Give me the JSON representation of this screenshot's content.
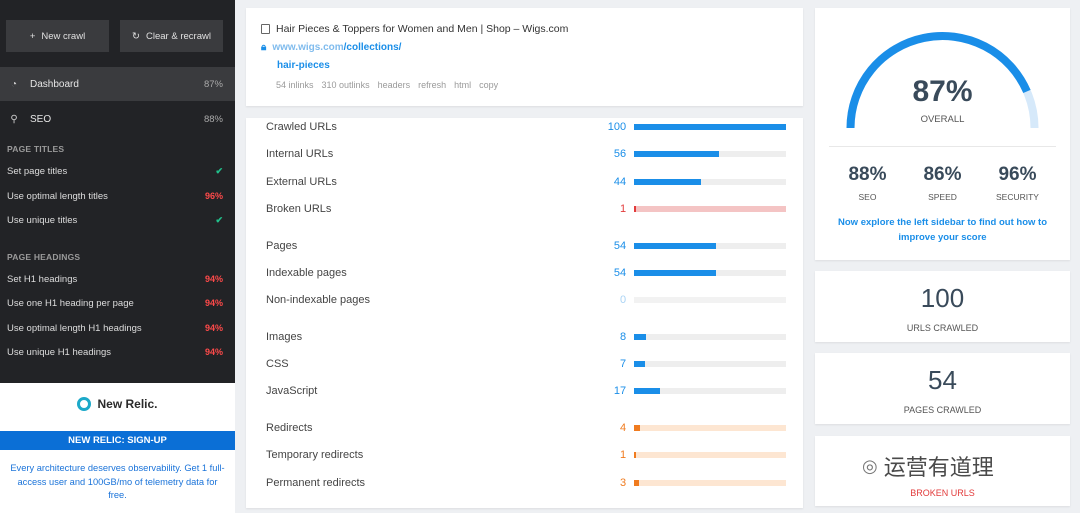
{
  "toolbar": {
    "new_crawl": "New crawl",
    "new_crawl_icon": "plus-icon",
    "recrawl": "Clear & recrawl",
    "recrawl_icon": "refresh-icon"
  },
  "sidebar": {
    "nav": [
      {
        "label": "Dashboard",
        "pct": "87%",
        "icon": "gauge-icon"
      },
      {
        "label": "SEO",
        "pct": "88%",
        "icon": "search-icon"
      }
    ],
    "sections": [
      {
        "title": "PAGE TITLES",
        "items": [
          {
            "label": "Set page titles",
            "status": "✔",
            "ok": true
          },
          {
            "label": "Use optimal length titles",
            "status": "96%",
            "ok": false
          },
          {
            "label": "Use unique titles",
            "status": "✔",
            "ok": true
          }
        ]
      },
      {
        "title": "PAGE HEADINGS",
        "items": [
          {
            "label": "Set H1 headings",
            "status": "94%",
            "ok": false
          },
          {
            "label": "Use one H1 heading per page",
            "status": "94%",
            "ok": false
          },
          {
            "label": "Use optimal length H1 headings",
            "status": "94%",
            "ok": false
          },
          {
            "label": "Use unique H1 headings",
            "status": "94%",
            "ok": false
          }
        ]
      }
    ],
    "promo": {
      "logo_text": "New Relic.",
      "bar": "NEW RELIC: SIGN-UP",
      "text": "Every architecture deserves observability. Get 1 full-access user and 100GB/mo of telemetry data for free."
    }
  },
  "url_card": {
    "title": "Hair Pieces & Toppers for Women and Men | Shop – Wigs.com",
    "domain": "www.wigs.com",
    "path1": "/collections/",
    "path2": "hair-pieces",
    "links": [
      "54 inlinks",
      "310 outlinks",
      "headers",
      "refresh",
      "html",
      "copy"
    ]
  },
  "stats": {
    "max": 100,
    "groups": [
      [
        {
          "label": "Crawled URLs",
          "value": 100,
          "color": "#1a8ee8",
          "track": "#eeeeee"
        },
        {
          "label": "Internal URLs",
          "value": 56,
          "color": "#1a8ee8",
          "track": "#eeeeee"
        },
        {
          "label": "External URLs",
          "value": 44,
          "color": "#1a8ee8",
          "track": "#eeeeee"
        },
        {
          "label": "Broken URLs",
          "value": 1,
          "color": "#e23b3b",
          "track": "#f4c4c4"
        }
      ],
      [
        {
          "label": "Pages",
          "value": 54,
          "color": "#1a8ee8",
          "track": "#eeeeee"
        },
        {
          "label": "Indexable pages",
          "value": 54,
          "color": "#1a8ee8",
          "track": "#eeeeee"
        },
        {
          "label": "Non-indexable pages",
          "value": 0,
          "color": "#a9d3f5",
          "track": "#f2f2f2"
        }
      ],
      [
        {
          "label": "Images",
          "value": 8,
          "color": "#1a8ee8",
          "track": "#eeeeee"
        },
        {
          "label": "CSS",
          "value": 7,
          "color": "#1a8ee8",
          "track": "#eeeeee"
        },
        {
          "label": "JavaScript",
          "value": 17,
          "color": "#1a8ee8",
          "track": "#eeeeee"
        }
      ],
      [
        {
          "label": "Redirects",
          "value": 4,
          "color": "#f07b1f",
          "track": "#fde6d2"
        },
        {
          "label": "Temporary redirects",
          "value": 1,
          "color": "#f07b1f",
          "track": "#fde6d2"
        },
        {
          "label": "Permanent redirects",
          "value": 3,
          "color": "#f07b1f",
          "track": "#fde6d2"
        }
      ]
    ]
  },
  "score": {
    "overall": "87%",
    "overall_fraction": 0.87,
    "overall_label": "OVERALL",
    "gauge_color": "#1a8ee8",
    "gauge_track": "#d6e9fa",
    "subs": [
      {
        "value": "88%",
        "label": "SEO"
      },
      {
        "value": "86%",
        "label": "SPEED"
      },
      {
        "value": "96%",
        "label": "SECURITY"
      }
    ],
    "explore": "Now explore the left sidebar to find out how to improve your score"
  },
  "counts": {
    "urls": {
      "value": "100",
      "label": "URLS CRAWLED"
    },
    "pages": {
      "value": "54",
      "label": "PAGES CRAWLED"
    },
    "broken": {
      "value": "",
      "label": "BROKEN URLS"
    }
  },
  "watermark": {
    "text": "运营有道理",
    "icon": "wechat-icon"
  }
}
